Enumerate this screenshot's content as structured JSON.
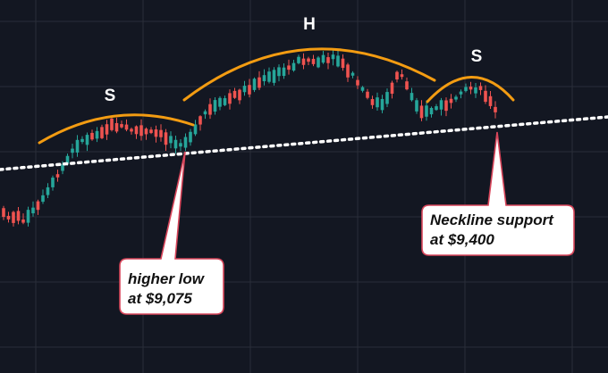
{
  "chart_data": {
    "type": "candlestick",
    "pattern_labels": {
      "left_shoulder": "S",
      "head": "H",
      "right_shoulder": "S"
    },
    "annotations": {
      "higher_low": {
        "line1": "higher low",
        "line2": "at $9,075",
        "value": 9075
      },
      "neckline": {
        "line1": "Neckline support",
        "line2": "at $9,400",
        "value": 9400
      }
    },
    "grid": true,
    "colors": {
      "background": "#131722",
      "grid": "#2a2e39",
      "bullish": "#26a69a",
      "bearish": "#ef5350",
      "arc": "#f39c12",
      "neckline": "#ffffff",
      "callout_fill": "#ffffff",
      "callout_border": "#d8455a"
    }
  }
}
